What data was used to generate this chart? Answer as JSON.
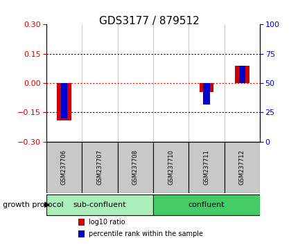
{
  "title": "GDS3177 / 879512",
  "samples": [
    "GSM237706",
    "GSM237707",
    "GSM237708",
    "GSM237710",
    "GSM237711",
    "GSM237712"
  ],
  "log10_ratio": [
    -0.19,
    0.0,
    0.0,
    0.0,
    -0.045,
    0.09
  ],
  "percentile_rank": [
    20,
    50,
    50,
    50,
    32,
    65
  ],
  "groups": [
    {
      "label": "sub-confluent",
      "start": 0,
      "end": 3,
      "color": "#AAEEBB"
    },
    {
      "label": "confluent",
      "start": 3,
      "end": 6,
      "color": "#44CC66"
    }
  ],
  "group_protocol_label": "growth protocol",
  "ylim_left": [
    -0.3,
    0.3
  ],
  "ylim_right": [
    0,
    100
  ],
  "yticks_left": [
    -0.3,
    -0.15,
    0,
    0.15,
    0.3
  ],
  "yticks_right": [
    0,
    25,
    50,
    75,
    100
  ],
  "hlines": [
    0.15,
    0.0,
    -0.15
  ],
  "hline_colors": [
    "black",
    "red",
    "black"
  ],
  "hline_styles": [
    "dotted",
    "dotted",
    "dotted"
  ],
  "bar_color_log10": "#CC0000",
  "bar_color_pct": "#0000CC",
  "bar_width": 0.4,
  "left_tick_color": "#CC0000",
  "right_tick_color": "#0000CC",
  "background_color": "#ffffff",
  "legend_items": [
    {
      "label": "log10 ratio",
      "color": "#CC0000"
    },
    {
      "label": "percentile rank within the sample",
      "color": "#0000CC"
    }
  ],
  "sample_box_color": "#C8C8C8",
  "group_box_border": "#000000"
}
